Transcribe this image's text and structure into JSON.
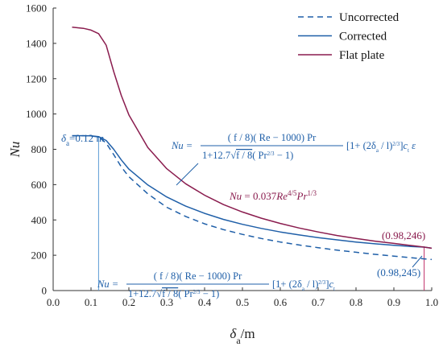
{
  "chart_data": {
    "type": "line",
    "xlabel": "δa/m",
    "ylabel": "Nu",
    "xlim": [
      0.0,
      1.0
    ],
    "ylim": [
      0,
      1600
    ],
    "x_ticks": [
      "0.0",
      "0.1",
      "0.2",
      "0.3",
      "0.4",
      "0.5",
      "0.6",
      "0.7",
      "0.8",
      "0.9",
      "1.0"
    ],
    "y_ticks": [
      "0",
      "200",
      "400",
      "600",
      "800",
      "1000",
      "1200",
      "1400",
      "1600"
    ],
    "grid": false,
    "legend_position": "top-right",
    "series": [
      {
        "name": "Uncorrected",
        "color": "#1f5fa8",
        "dash": true,
        "points": [
          [
            0.05,
            877
          ],
          [
            0.08,
            877
          ],
          [
            0.1,
            875
          ],
          [
            0.12,
            870
          ],
          [
            0.14,
            835
          ],
          [
            0.16,
            770
          ],
          [
            0.18,
            700
          ],
          [
            0.2,
            645
          ],
          [
            0.25,
            548
          ],
          [
            0.3,
            472
          ],
          [
            0.35,
            420
          ],
          [
            0.4,
            378
          ],
          [
            0.45,
            345
          ],
          [
            0.5,
            318
          ],
          [
            0.55,
            295
          ],
          [
            0.6,
            275
          ],
          [
            0.65,
            258
          ],
          [
            0.7,
            243
          ],
          [
            0.75,
            229
          ],
          [
            0.8,
            217
          ],
          [
            0.85,
            205
          ],
          [
            0.9,
            195
          ],
          [
            0.95,
            185
          ],
          [
            1.0,
            176
          ]
        ]
      },
      {
        "name": "Corrected",
        "color": "#1f5fa8",
        "dash": false,
        "points": [
          [
            0.05,
            877
          ],
          [
            0.08,
            877
          ],
          [
            0.1,
            876
          ],
          [
            0.12,
            872
          ],
          [
            0.14,
            850
          ],
          [
            0.16,
            800
          ],
          [
            0.18,
            740
          ],
          [
            0.2,
            688
          ],
          [
            0.25,
            598
          ],
          [
            0.3,
            530
          ],
          [
            0.35,
            478
          ],
          [
            0.4,
            437
          ],
          [
            0.45,
            403
          ],
          [
            0.5,
            375
          ],
          [
            0.55,
            352
          ],
          [
            0.6,
            332
          ],
          [
            0.65,
            315
          ],
          [
            0.7,
            300
          ],
          [
            0.75,
            287
          ],
          [
            0.8,
            275
          ],
          [
            0.85,
            265
          ],
          [
            0.9,
            256
          ],
          [
            0.95,
            249
          ],
          [
            0.98,
            246
          ],
          [
            1.0,
            240
          ]
        ]
      },
      {
        "name": "Flat plate",
        "color": "#8a1c4e",
        "dash": false,
        "points": [
          [
            0.05,
            1492
          ],
          [
            0.08,
            1485
          ],
          [
            0.1,
            1475
          ],
          [
            0.12,
            1455
          ],
          [
            0.14,
            1390
          ],
          [
            0.16,
            1240
          ],
          [
            0.18,
            1105
          ],
          [
            0.2,
            995
          ],
          [
            0.25,
            810
          ],
          [
            0.3,
            690
          ],
          [
            0.35,
            605
          ],
          [
            0.4,
            540
          ],
          [
            0.45,
            487
          ],
          [
            0.5,
            445
          ],
          [
            0.55,
            410
          ],
          [
            0.6,
            380
          ],
          [
            0.65,
            354
          ],
          [
            0.7,
            332
          ],
          [
            0.75,
            312
          ],
          [
            0.8,
            295
          ],
          [
            0.85,
            280
          ],
          [
            0.9,
            267
          ],
          [
            0.95,
            254
          ],
          [
            0.98,
            246
          ],
          [
            1.0,
            240
          ]
        ]
      }
    ],
    "annotations": {
      "delta_marker": {
        "x": 0.12,
        "label_sym": "δ",
        "label_sub": "a",
        "label_val": "=0.12 m"
      },
      "upper_point": {
        "x": 0.98,
        "y": 246,
        "label": "(0.98,246)"
      },
      "lower_point": {
        "x": 0.98,
        "y": 245,
        "label": "(0.98,245)"
      },
      "flat_eq": {
        "lhs": "Nu",
        "mid": " = 0.037",
        "re": "Re",
        "exp1": "4/5",
        "pr": "Pr",
        "exp2": "1/3"
      },
      "eq_corrected": {
        "lhs": "Nu =",
        "numerator": "( f / 8)( Re − 1000) Pr",
        "den_lead": "1+12.7",
        "den_root": "f / 8",
        "den_tail": "( Pr",
        "den_exp": "2/3",
        "den_end": " − 1)",
        "bracket": "[1+ (2δ",
        "bracket_sub": "a",
        "bracket_mid": " / l)",
        "bracket_exp": "2/3",
        "bracket_end": "]",
        "factor": "c",
        "factor_sub": "t",
        "factor_tail": " ε"
      },
      "eq_uncorrected": {
        "lhs": "Nu =",
        "numerator": "( f / 8)( Re − 1000) Pr",
        "den_lead": "1+12.7",
        "den_root": "f / 8",
        "den_tail": "( Pr",
        "den_exp": "2/3",
        "den_end": " − 1)",
        "bracket": "[1+ (2δ",
        "bracket_sub": "a",
        "bracket_mid": " / l)",
        "bracket_exp": "2/3",
        "bracket_end": "]",
        "factor": "c",
        "factor_sub": "t"
      }
    }
  }
}
